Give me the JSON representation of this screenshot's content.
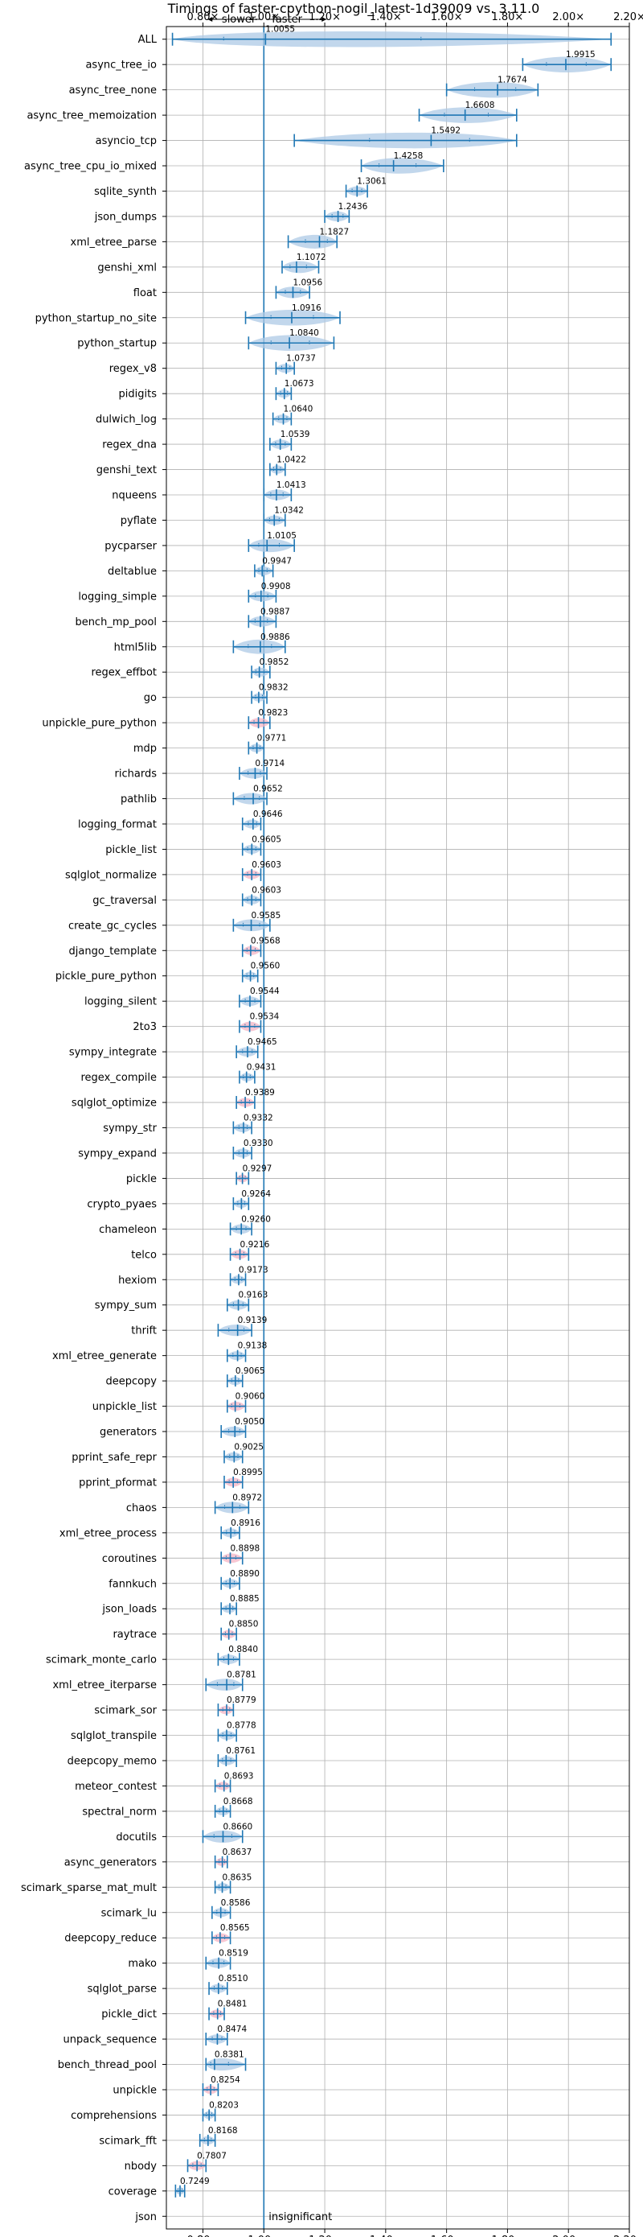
{
  "chart_data": {
    "type": "violin",
    "title": "Timings of faster-cpython-nogil_latest-1d39009 vs. 3.11.0",
    "xlabel": "",
    "ylabel": "",
    "xlim": [
      0.68,
      2.2
    ],
    "xticks": [
      0.8,
      1.0,
      1.2,
      1.4,
      1.6,
      1.8,
      2.0,
      2.2
    ],
    "xtick_labels": [
      "0.80×",
      "1.00×",
      "1.20×",
      "1.40×",
      "1.60×",
      "1.80×",
      "2.00×",
      "2.20×"
    ],
    "reference_line": 1.0,
    "grid": true,
    "top_annotation": {
      "slower": "slower",
      "faster": "faster"
    },
    "insignificant_label": "insignificant",
    "colors": {
      "violin": "#aec9e6",
      "violin_slower": "#f4b4c4",
      "line": "#1f77b4"
    },
    "benchmarks": [
      {
        "name": "ALL",
        "value": 1.0055,
        "label": "1.0055",
        "lo": 0.7,
        "hi": 2.14
      },
      {
        "name": "async_tree_io",
        "value": 1.9915,
        "label": "1.9915",
        "lo": 1.85,
        "hi": 2.14
      },
      {
        "name": "async_tree_none",
        "value": 1.7674,
        "label": "1.7674",
        "lo": 1.6,
        "hi": 1.9
      },
      {
        "name": "async_tree_memoization",
        "value": 1.6608,
        "label": "1.6608",
        "lo": 1.51,
        "hi": 1.83
      },
      {
        "name": "asyncio_tcp",
        "value": 1.5492,
        "label": "1.5492",
        "lo": 1.1,
        "hi": 1.83
      },
      {
        "name": "async_tree_cpu_io_mixed",
        "value": 1.4258,
        "label": "1.4258",
        "lo": 1.32,
        "hi": 1.59
      },
      {
        "name": "sqlite_synth",
        "value": 1.3061,
        "label": "1.3061",
        "lo": 1.27,
        "hi": 1.34
      },
      {
        "name": "json_dumps",
        "value": 1.2436,
        "label": "1.2436",
        "lo": 1.2,
        "hi": 1.28
      },
      {
        "name": "xml_etree_parse",
        "value": 1.1827,
        "label": "1.1827",
        "lo": 1.08,
        "hi": 1.24
      },
      {
        "name": "genshi_xml",
        "value": 1.1072,
        "label": "1.1072",
        "lo": 1.06,
        "hi": 1.18
      },
      {
        "name": "float",
        "value": 1.0956,
        "label": "1.0956",
        "lo": 1.04,
        "hi": 1.15
      },
      {
        "name": "python_startup_no_site",
        "value": 1.0916,
        "label": "1.0916",
        "lo": 0.94,
        "hi": 1.25
      },
      {
        "name": "python_startup",
        "value": 1.084,
        "label": "1.0840",
        "lo": 0.95,
        "hi": 1.23
      },
      {
        "name": "regex_v8",
        "value": 1.0737,
        "label": "1.0737",
        "lo": 1.04,
        "hi": 1.1
      },
      {
        "name": "pidigits",
        "value": 1.0673,
        "label": "1.0673",
        "lo": 1.04,
        "hi": 1.09
      },
      {
        "name": "dulwich_log",
        "value": 1.064,
        "label": "1.0640",
        "lo": 1.03,
        "hi": 1.09
      },
      {
        "name": "regex_dna",
        "value": 1.0539,
        "label": "1.0539",
        "lo": 1.02,
        "hi": 1.09
      },
      {
        "name": "genshi_text",
        "value": 1.0422,
        "label": "1.0422",
        "lo": 1.02,
        "hi": 1.07
      },
      {
        "name": "nqueens",
        "value": 1.0413,
        "label": "1.0413",
        "lo": 1.0,
        "hi": 1.09
      },
      {
        "name": "pyflate",
        "value": 1.0342,
        "label": "1.0342",
        "lo": 1.0,
        "hi": 1.07
      },
      {
        "name": "pycparser",
        "value": 1.0105,
        "label": "1.0105",
        "lo": 0.95,
        "hi": 1.1
      },
      {
        "name": "deltablue",
        "value": 0.9947,
        "label": "0.9947",
        "lo": 0.97,
        "hi": 1.03
      },
      {
        "name": "logging_simple",
        "value": 0.9908,
        "label": "0.9908",
        "lo": 0.95,
        "hi": 1.04
      },
      {
        "name": "bench_mp_pool",
        "value": 0.9887,
        "label": "0.9887",
        "lo": 0.95,
        "hi": 1.04
      },
      {
        "name": "html5lib",
        "value": 0.9886,
        "label": "0.9886",
        "lo": 0.9,
        "hi": 1.07
      },
      {
        "name": "regex_effbot",
        "value": 0.9852,
        "label": "0.9852",
        "lo": 0.96,
        "hi": 1.02
      },
      {
        "name": "go",
        "value": 0.9832,
        "label": "0.9832",
        "lo": 0.96,
        "hi": 1.01
      },
      {
        "name": "unpickle_pure_python",
        "value": 0.9823,
        "label": "0.9823",
        "lo": 0.95,
        "hi": 1.02
      },
      {
        "name": "mdp",
        "value": 0.9771,
        "label": "0.9771",
        "lo": 0.95,
        "hi": 1.0
      },
      {
        "name": "richards",
        "value": 0.9714,
        "label": "0.9714",
        "lo": 0.92,
        "hi": 1.01
      },
      {
        "name": "pathlib",
        "value": 0.9652,
        "label": "0.9652",
        "lo": 0.9,
        "hi": 1.01
      },
      {
        "name": "logging_format",
        "value": 0.9646,
        "label": "0.9646",
        "lo": 0.93,
        "hi": 0.99
      },
      {
        "name": "pickle_list",
        "value": 0.9605,
        "label": "0.9605",
        "lo": 0.93,
        "hi": 0.99
      },
      {
        "name": "sqlglot_normalize",
        "value": 0.9603,
        "label": "0.9603",
        "lo": 0.93,
        "hi": 0.99
      },
      {
        "name": "gc_traversal",
        "value": 0.9603,
        "label": "0.9603",
        "lo": 0.93,
        "hi": 0.99
      },
      {
        "name": "create_gc_cycles",
        "value": 0.9585,
        "label": "0.9585",
        "lo": 0.9,
        "hi": 1.02
      },
      {
        "name": "django_template",
        "value": 0.9568,
        "label": "0.9568",
        "lo": 0.93,
        "hi": 0.99
      },
      {
        "name": "pickle_pure_python",
        "value": 0.956,
        "label": "0.9560",
        "lo": 0.93,
        "hi": 0.98
      },
      {
        "name": "logging_silent",
        "value": 0.9544,
        "label": "0.9544",
        "lo": 0.92,
        "hi": 0.99
      },
      {
        "name": "2to3",
        "value": 0.9534,
        "label": "0.9534",
        "lo": 0.92,
        "hi": 0.99
      },
      {
        "name": "sympy_integrate",
        "value": 0.9465,
        "label": "0.9465",
        "lo": 0.91,
        "hi": 0.98
      },
      {
        "name": "regex_compile",
        "value": 0.9431,
        "label": "0.9431",
        "lo": 0.92,
        "hi": 0.97
      },
      {
        "name": "sqlglot_optimize",
        "value": 0.9389,
        "label": "0.9389",
        "lo": 0.91,
        "hi": 0.97
      },
      {
        "name": "sympy_str",
        "value": 0.9332,
        "label": "0.9332",
        "lo": 0.9,
        "hi": 0.96
      },
      {
        "name": "sympy_expand",
        "value": 0.933,
        "label": "0.9330",
        "lo": 0.9,
        "hi": 0.96
      },
      {
        "name": "pickle",
        "value": 0.9297,
        "label": "0.9297",
        "lo": 0.91,
        "hi": 0.95
      },
      {
        "name": "crypto_pyaes",
        "value": 0.9264,
        "label": "0.9264",
        "lo": 0.9,
        "hi": 0.95
      },
      {
        "name": "chameleon",
        "value": 0.926,
        "label": "0.9260",
        "lo": 0.89,
        "hi": 0.96
      },
      {
        "name": "telco",
        "value": 0.9216,
        "label": "0.9216",
        "lo": 0.89,
        "hi": 0.95
      },
      {
        "name": "hexiom",
        "value": 0.9173,
        "label": "0.9173",
        "lo": 0.89,
        "hi": 0.94
      },
      {
        "name": "sympy_sum",
        "value": 0.9163,
        "label": "0.9163",
        "lo": 0.88,
        "hi": 0.95
      },
      {
        "name": "thrift",
        "value": 0.9139,
        "label": "0.9139",
        "lo": 0.85,
        "hi": 0.96
      },
      {
        "name": "xml_etree_generate",
        "value": 0.9138,
        "label": "0.9138",
        "lo": 0.88,
        "hi": 0.94
      },
      {
        "name": "deepcopy",
        "value": 0.9065,
        "label": "0.9065",
        "lo": 0.88,
        "hi": 0.93
      },
      {
        "name": "unpickle_list",
        "value": 0.906,
        "label": "0.9060",
        "lo": 0.88,
        "hi": 0.94
      },
      {
        "name": "generators",
        "value": 0.905,
        "label": "0.9050",
        "lo": 0.86,
        "hi": 0.94
      },
      {
        "name": "pprint_safe_repr",
        "value": 0.9025,
        "label": "0.9025",
        "lo": 0.87,
        "hi": 0.93
      },
      {
        "name": "pprint_pformat",
        "value": 0.8995,
        "label": "0.8995",
        "lo": 0.87,
        "hi": 0.93
      },
      {
        "name": "chaos",
        "value": 0.8972,
        "label": "0.8972",
        "lo": 0.84,
        "hi": 0.95
      },
      {
        "name": "xml_etree_process",
        "value": 0.8916,
        "label": "0.8916",
        "lo": 0.86,
        "hi": 0.92
      },
      {
        "name": "coroutines",
        "value": 0.8898,
        "label": "0.8898",
        "lo": 0.86,
        "hi": 0.93
      },
      {
        "name": "fannkuch",
        "value": 0.889,
        "label": "0.8890",
        "lo": 0.86,
        "hi": 0.92
      },
      {
        "name": "json_loads",
        "value": 0.8885,
        "label": "0.8885",
        "lo": 0.86,
        "hi": 0.91
      },
      {
        "name": "raytrace",
        "value": 0.885,
        "label": "0.8850",
        "lo": 0.86,
        "hi": 0.91
      },
      {
        "name": "scimark_monte_carlo",
        "value": 0.884,
        "label": "0.8840",
        "lo": 0.85,
        "hi": 0.92
      },
      {
        "name": "xml_etree_iterparse",
        "value": 0.8781,
        "label": "0.8781",
        "lo": 0.81,
        "hi": 0.93
      },
      {
        "name": "scimark_sor",
        "value": 0.8779,
        "label": "0.8779",
        "lo": 0.85,
        "hi": 0.9
      },
      {
        "name": "sqlglot_transpile",
        "value": 0.8778,
        "label": "0.8778",
        "lo": 0.85,
        "hi": 0.91
      },
      {
        "name": "deepcopy_memo",
        "value": 0.8761,
        "label": "0.8761",
        "lo": 0.85,
        "hi": 0.91
      },
      {
        "name": "meteor_contest",
        "value": 0.8693,
        "label": "0.8693",
        "lo": 0.84,
        "hi": 0.89
      },
      {
        "name": "spectral_norm",
        "value": 0.8668,
        "label": "0.8668",
        "lo": 0.84,
        "hi": 0.89
      },
      {
        "name": "docutils",
        "value": 0.866,
        "label": "0.8660",
        "lo": 0.8,
        "hi": 0.93
      },
      {
        "name": "async_generators",
        "value": 0.8637,
        "label": "0.8637",
        "lo": 0.84,
        "hi": 0.88
      },
      {
        "name": "scimark_sparse_mat_mult",
        "value": 0.8635,
        "label": "0.8635",
        "lo": 0.84,
        "hi": 0.89
      },
      {
        "name": "scimark_lu",
        "value": 0.8586,
        "label": "0.8586",
        "lo": 0.83,
        "hi": 0.89
      },
      {
        "name": "deepcopy_reduce",
        "value": 0.8565,
        "label": "0.8565",
        "lo": 0.83,
        "hi": 0.89
      },
      {
        "name": "mako",
        "value": 0.8519,
        "label": "0.8519",
        "lo": 0.81,
        "hi": 0.89
      },
      {
        "name": "sqlglot_parse",
        "value": 0.851,
        "label": "0.8510",
        "lo": 0.82,
        "hi": 0.88
      },
      {
        "name": "pickle_dict",
        "value": 0.8481,
        "label": "0.8481",
        "lo": 0.82,
        "hi": 0.87
      },
      {
        "name": "unpack_sequence",
        "value": 0.8474,
        "label": "0.8474",
        "lo": 0.81,
        "hi": 0.88
      },
      {
        "name": "bench_thread_pool",
        "value": 0.8381,
        "label": "0.8381",
        "lo": 0.81,
        "hi": 0.94
      },
      {
        "name": "unpickle",
        "value": 0.8254,
        "label": "0.8254",
        "lo": 0.8,
        "hi": 0.85
      },
      {
        "name": "comprehensions",
        "value": 0.8203,
        "label": "0.8203",
        "lo": 0.8,
        "hi": 0.84
      },
      {
        "name": "scimark_fft",
        "value": 0.8168,
        "label": "0.8168",
        "lo": 0.79,
        "hi": 0.84
      },
      {
        "name": "nbody",
        "value": 0.7807,
        "label": "0.7807",
        "lo": 0.75,
        "hi": 0.81
      },
      {
        "name": "coverage",
        "value": 0.7249,
        "label": "0.7249",
        "lo": 0.71,
        "hi": 0.74
      },
      {
        "name": "json",
        "value": null,
        "label": "",
        "lo": null,
        "hi": null
      }
    ]
  }
}
